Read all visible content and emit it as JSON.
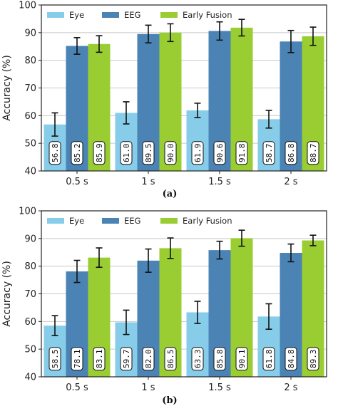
{
  "colors": {
    "eye": "#87cdea",
    "eeg": "#4a83b4",
    "fusion": "#9acd32",
    "grid": "#c8c8c8"
  },
  "chart_data": [
    {
      "type": "bar",
      "caption": "(a)",
      "categories": [
        "0.5 s",
        "1 s",
        "1.5 s",
        "2 s"
      ],
      "ylabel": "Accuracy (%)",
      "ylim": [
        40,
        100
      ],
      "yticks": [
        40,
        50,
        60,
        70,
        80,
        90,
        100
      ],
      "grid": true,
      "legend_position": "top",
      "series": [
        {
          "name": "Eye",
          "color_key": "eye",
          "values": [
            56.8,
            61.0,
            61.9,
            58.7
          ],
          "labels": [
            "56.8",
            "61.0",
            "61.9",
            "58.7"
          ],
          "errors": [
            4.2,
            4.0,
            2.6,
            3.2
          ]
        },
        {
          "name": "EEG",
          "color_key": "eeg",
          "values": [
            85.2,
            89.5,
            90.6,
            86.8
          ],
          "labels": [
            "85.2",
            "89.5",
            "90.6",
            "86.8"
          ],
          "errors": [
            3.0,
            3.2,
            3.3,
            4.0
          ]
        },
        {
          "name": "Early Fusion",
          "color_key": "fusion",
          "values": [
            85.9,
            90.0,
            91.8,
            88.7
          ],
          "labels": [
            "85.9",
            "90.0",
            "91.8",
            "88.7"
          ],
          "errors": [
            3.0,
            3.2,
            3.0,
            3.3
          ]
        }
      ]
    },
    {
      "type": "bar",
      "caption": "(b)",
      "categories": [
        "0.5 s",
        "1 s",
        "1.5 s",
        "2 s"
      ],
      "ylabel": "Accuracy (%)",
      "ylim": [
        40,
        100
      ],
      "yticks": [
        40,
        50,
        60,
        70,
        80,
        90,
        100
      ],
      "grid": true,
      "legend_position": "top",
      "series": [
        {
          "name": "Eye",
          "color_key": "eye",
          "values": [
            58.5,
            59.7,
            63.3,
            61.8
          ],
          "labels": [
            "58.5",
            "59.7",
            "63.3",
            "61.8"
          ],
          "errors": [
            3.6,
            4.4,
            4.0,
            4.6
          ]
        },
        {
          "name": "EEG",
          "color_key": "eeg",
          "values": [
            78.1,
            82.0,
            85.8,
            84.8
          ],
          "labels": [
            "78.1",
            "82.0",
            "85.8",
            "84.8"
          ],
          "errors": [
            4.0,
            4.2,
            3.2,
            3.2
          ]
        },
        {
          "name": "Early Fusion",
          "color_key": "fusion",
          "values": [
            83.1,
            86.5,
            90.1,
            89.3
          ],
          "labels": [
            "83.1",
            "86.5",
            "90.1",
            "89.3"
          ],
          "errors": [
            3.5,
            3.7,
            2.9,
            1.9
          ]
        }
      ]
    }
  ]
}
